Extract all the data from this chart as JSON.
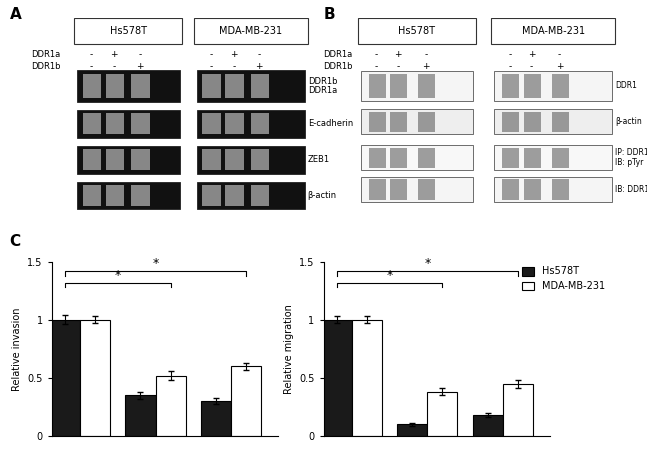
{
  "cell_lines": [
    "Hs578T",
    "MDA-MB-231"
  ],
  "ddr1a_row": [
    "-",
    "+",
    "-",
    "-",
    "+",
    "-"
  ],
  "ddr1b_row": [
    "-",
    "-",
    "+",
    "-",
    "-",
    "+"
  ],
  "gel_labels_A": [
    "DDR1b\nDDR1a",
    "E-cadherin",
    "ZEB1",
    "β-actin"
  ],
  "wb_labels_B": [
    "DDR1",
    "β-actin",
    "IP: DDR1\nIB: pTyr",
    "IB: DDR1"
  ],
  "invasion_hs578t": [
    1.0,
    0.35,
    0.3
  ],
  "invasion_mda": [
    1.0,
    0.52,
    0.6
  ],
  "invasion_hs578t_err": [
    0.04,
    0.03,
    0.025
  ],
  "invasion_mda_err": [
    0.03,
    0.04,
    0.03
  ],
  "migration_hs578t": [
    1.0,
    0.1,
    0.18
  ],
  "migration_mda": [
    1.0,
    0.38,
    0.45
  ],
  "migration_hs578t_err": [
    0.03,
    0.015,
    0.02
  ],
  "migration_mda_err": [
    0.03,
    0.03,
    0.035
  ],
  "bar_color_hs578t": "#1a1a1a",
  "bar_color_mda": "#ffffff",
  "bar_edgecolor": "#000000",
  "ylabel_invasion": "Relative invasion",
  "ylabel_migration": "Relative migration",
  "ylim": [
    0,
    1.5
  ],
  "yticks": [
    0,
    0.5,
    1.0,
    1.5
  ],
  "legend_labels": [
    "Hs578T",
    "MDA-MB-231"
  ],
  "bar_width": 0.32,
  "group_positions": [
    0.2,
    1.0,
    1.8
  ],
  "background_color": "#ffffff"
}
